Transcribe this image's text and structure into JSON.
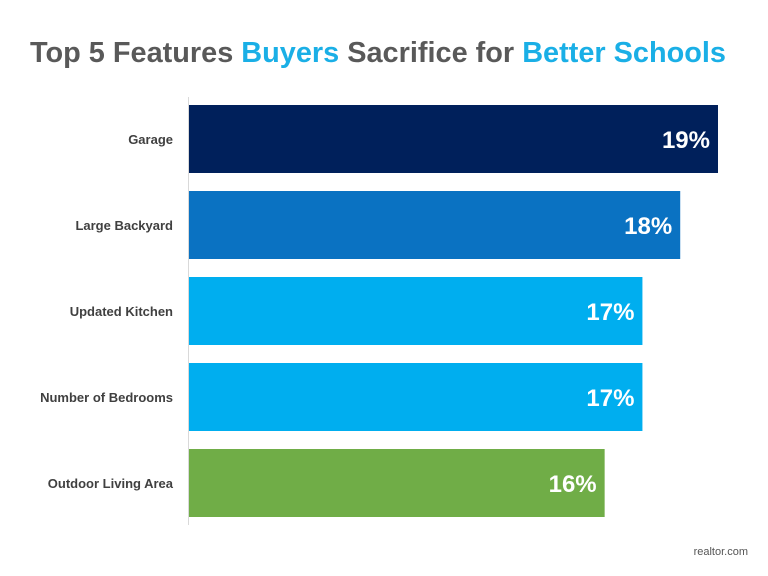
{
  "chart_data": {
    "type": "bar",
    "orientation": "horizontal",
    "title_parts": [
      {
        "text": "Top 5 Features ",
        "color": "#595959"
      },
      {
        "text": "Buyers",
        "color": "#1aafe6"
      },
      {
        "text": " Sacrifice for ",
        "color": "#595959"
      },
      {
        "text": "Better Schools",
        "color": "#1aafe6"
      }
    ],
    "categories": [
      "Garage",
      "Large Backyard",
      "Updated Kitchen",
      "Number of Bedrooms",
      "Outdoor Living Area"
    ],
    "values": [
      19,
      18,
      17,
      17,
      16
    ],
    "data_labels": [
      "19%",
      "18%",
      "17%",
      "17%",
      "16%"
    ],
    "colors": [
      "#00205b",
      "#0a72c2",
      "#00aeef",
      "#00aeef",
      "#70ad47"
    ],
    "xlabel": "",
    "ylabel": "",
    "xlim": [
      5,
      19
    ],
    "grid": false,
    "legend": "none"
  },
  "source": "realtor.com"
}
